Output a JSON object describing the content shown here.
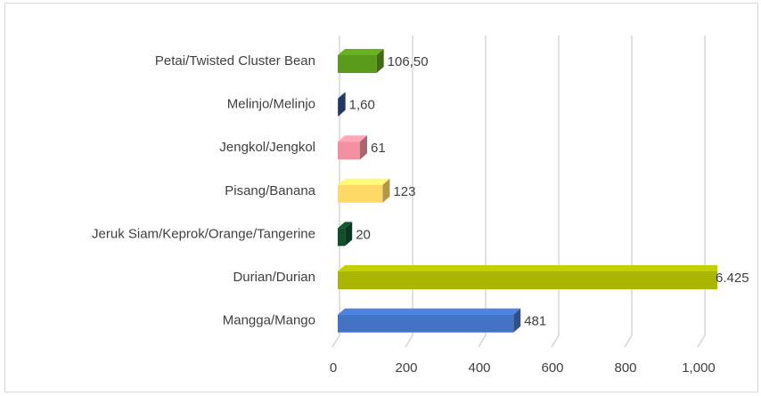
{
  "chart_data": {
    "type": "bar",
    "orientation": "horizontal",
    "categories": [
      "Petai/Twisted Cluster Bean",
      "Melinjo/Melinjo",
      "Jengkol/Jengkol",
      "Pisang/Banana",
      "Jeruk Siam/Keprok/Orange/Tangerine",
      "Durian/Durian",
      "Mangga/Mango"
    ],
    "values": [
      106.5,
      1.6,
      61,
      123,
      20,
      6425,
      481
    ],
    "value_labels": [
      "106,50",
      "1,60",
      "61",
      "123",
      "20",
      "6.425",
      "481"
    ],
    "colors": [
      "#5b9b1c",
      "#2f4f8f",
      "#f4909f",
      "#ffd966",
      "#0f4f2c",
      "#a9b500",
      "#4472c4"
    ],
    "label_colors": [
      "#2e6b0e",
      "#2f4f8f",
      "#a0185a",
      "#8a6a00",
      "#3a7a1a",
      "#5a6000",
      "#1f4e79"
    ],
    "xlim": [
      0,
      1000
    ],
    "xticks": [
      0,
      200,
      400,
      600,
      800,
      {
        "value": 1000,
        "label": "1,000"
      }
    ],
    "grid": true
  }
}
